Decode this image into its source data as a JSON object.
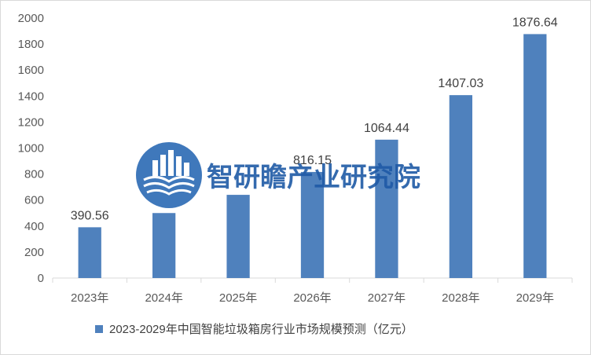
{
  "chart_data": {
    "type": "bar",
    "categories": [
      "2023年",
      "2024年",
      "2025年",
      "2026年",
      "2027年",
      "2028年",
      "2029年"
    ],
    "series": [
      {
        "name": "2023-2029年中国智能垃圾箱房行业市场规模预测（亿元）",
        "values": [
          390.56,
          500,
          640,
          816.15,
          1064.44,
          1407.03,
          1876.64
        ],
        "labels": [
          "390.56",
          "",
          "",
          "816.15",
          "1064.44",
          "1407.03",
          "1876.64"
        ],
        "color": "#4f81bd"
      }
    ],
    "ylim": [
      0,
      2000
    ],
    "yticks": [
      0,
      200,
      400,
      600,
      800,
      1000,
      1200,
      1400,
      1600,
      1800,
      2000
    ],
    "grid": false,
    "legend_position": "bottom"
  },
  "watermark": {
    "text": "智研瞻产业研究院",
    "logo_icon": "book-building-logo-icon",
    "color": "#1f5aa6"
  }
}
